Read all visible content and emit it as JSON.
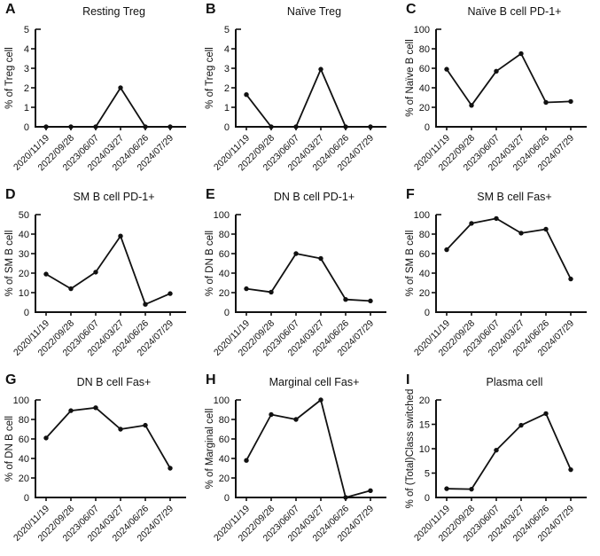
{
  "figure": {
    "layout": "3x3-grid",
    "axis_color": "#111111",
    "line_color": "#111111",
    "marker": "filled-circle",
    "x_tick_label_rotation_deg": -45
  },
  "categories": [
    "2020/11/19",
    "2022/09/28",
    "2023/06/07",
    "2024/03/27",
    "2024/06/26",
    "2024/07/29"
  ],
  "chart_data": [
    {
      "type": "line",
      "panel": "A",
      "title": "Resting Treg",
      "xlabel": "",
      "ylabel": "% of Treg cell",
      "ylim": [
        0,
        5
      ],
      "yticks": [
        0,
        1,
        2,
        3,
        4,
        5
      ],
      "categories": [
        "2020/11/19",
        "2022/09/28",
        "2023/06/07",
        "2024/03/27",
        "2024/06/26",
        "2024/07/29"
      ],
      "values": [
        0,
        0,
        0,
        2,
        0,
        0
      ]
    },
    {
      "type": "line",
      "panel": "B",
      "title": "Naïve Treg",
      "xlabel": "",
      "ylabel": "% of Treg cell",
      "ylim": [
        0,
        5
      ],
      "yticks": [
        0,
        1,
        2,
        3,
        4,
        5
      ],
      "categories": [
        "2020/11/19",
        "2022/09/28",
        "2023/06/07",
        "2024/03/27",
        "2024/06/26",
        "2024/07/29"
      ],
      "values": [
        1.65,
        0,
        0,
        2.95,
        0,
        0
      ]
    },
    {
      "type": "line",
      "panel": "C",
      "title": "Naïve B cell PD-1+",
      "xlabel": "",
      "ylabel": "% of Naïve B cell",
      "ylim": [
        0,
        100
      ],
      "yticks": [
        0,
        20,
        40,
        60,
        80,
        100
      ],
      "categories": [
        "2020/11/19",
        "2022/09/28",
        "2023/06/07",
        "2024/03/27",
        "2024/06/26",
        "2024/07/29"
      ],
      "values": [
        59,
        22,
        57,
        75,
        25,
        26
      ]
    },
    {
      "type": "line",
      "panel": "D",
      "title": "SM B cell PD-1+",
      "xlabel": "",
      "ylabel": "% of SM B cell",
      "ylim": [
        0,
        50
      ],
      "yticks": [
        0,
        10,
        20,
        30,
        40,
        50
      ],
      "categories": [
        "2020/11/19",
        "2022/09/28",
        "2023/06/07",
        "2024/03/27",
        "2024/06/26",
        "2024/07/29"
      ],
      "values": [
        19.5,
        12,
        20.5,
        39,
        4,
        9.5
      ]
    },
    {
      "type": "line",
      "panel": "E",
      "title": "DN B cell PD-1+",
      "xlabel": "",
      "ylabel": "% of DN B cell",
      "ylim": [
        0,
        100
      ],
      "yticks": [
        0,
        20,
        40,
        60,
        80,
        100
      ],
      "categories": [
        "2020/11/19",
        "2022/09/28",
        "2023/06/07",
        "2024/03/27",
        "2024/06/26",
        "2024/07/29"
      ],
      "values": [
        24,
        20.5,
        60,
        55,
        13,
        11.5
      ]
    },
    {
      "type": "line",
      "panel": "F",
      "title": "SM B cell Fas+",
      "xlabel": "",
      "ylabel": "% of SM B cell",
      "ylim": [
        0,
        100
      ],
      "yticks": [
        0,
        20,
        40,
        60,
        80,
        100
      ],
      "categories": [
        "2020/11/19",
        "2022/09/28",
        "2023/06/07",
        "2024/03/27",
        "2024/06/26",
        "2024/07/29"
      ],
      "values": [
        64,
        91,
        96,
        81,
        85,
        34
      ]
    },
    {
      "type": "line",
      "panel": "G",
      "title": "DN B cell Fas+",
      "xlabel": "",
      "ylabel": "% of DN B cell",
      "ylim": [
        0,
        100
      ],
      "yticks": [
        0,
        20,
        40,
        60,
        80,
        100
      ],
      "categories": [
        "2020/11/19",
        "2022/09/28",
        "2023/06/07",
        "2024/03/27",
        "2024/06/26",
        "2024/07/29"
      ],
      "values": [
        61,
        89,
        92,
        70,
        74,
        30
      ]
    },
    {
      "type": "line",
      "panel": "H",
      "title": "Marginal cell Fas+",
      "xlabel": "",
      "ylabel": "% of Marginal cell",
      "ylim": [
        0,
        100
      ],
      "yticks": [
        0,
        20,
        40,
        60,
        80,
        100
      ],
      "categories": [
        "2020/11/19",
        "2022/09/28",
        "2023/06/07",
        "2024/03/27",
        "2024/06/26",
        "2024/07/29"
      ],
      "values": [
        38,
        85,
        80,
        100,
        0,
        7
      ]
    },
    {
      "type": "line",
      "panel": "I",
      "title": "Plasma cell",
      "xlabel": "",
      "ylabel": "% of (Total)Class switched",
      "ylim": [
        0,
        20
      ],
      "yticks": [
        0,
        5,
        10,
        15,
        20
      ],
      "categories": [
        "2020/11/19",
        "2022/09/28",
        "2023/06/07",
        "2024/03/27",
        "2024/06/26",
        "2024/07/29"
      ],
      "values": [
        1.8,
        1.7,
        9.7,
        14.8,
        17.2,
        5.7
      ]
    }
  ]
}
